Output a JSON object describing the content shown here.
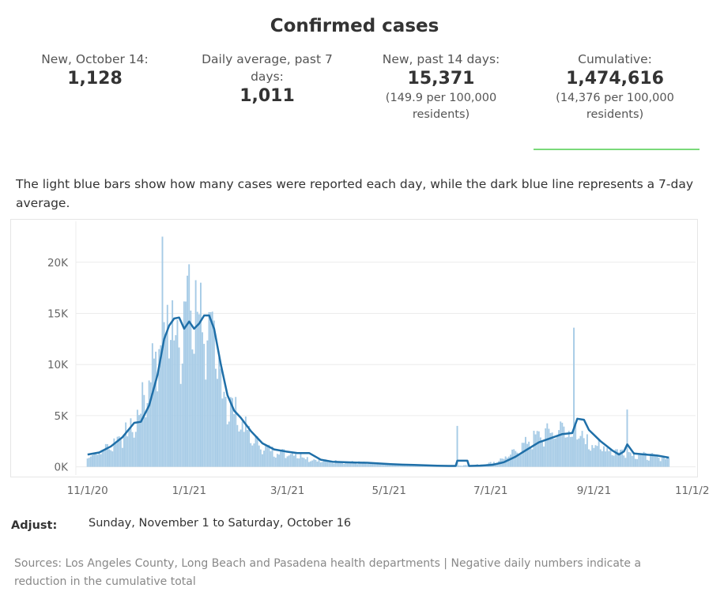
{
  "title": "Confirmed cases",
  "stats": [
    {
      "label": "New, October 14:",
      "value": "1,128",
      "sub": ""
    },
    {
      "label": "Daily average, past 7 days:",
      "value": "1,011",
      "sub": ""
    },
    {
      "label": "New, past 14 days:",
      "value": "15,371",
      "sub": "(149.9 per 100,000 residents)"
    },
    {
      "label": "Cumulative:",
      "value": "1,474,616",
      "sub": "(14,376 per 100,000 residents)"
    }
  ],
  "description": "The light blue bars show how many cases were reported each day, while the dark blue line represents a 7-day average.",
  "adjust": {
    "label": "Adjust:",
    "value": "Sunday, November 1 to Saturday, October 16"
  },
  "sources": "Sources: Los Angeles County, Long Beach and Pasadena health departments | Negative daily numbers indicate a reduction in the cumulative total",
  "colors": {
    "bars": "#a6cbe6",
    "line": "#1f6fa8",
    "grid": "#ececec",
    "accent_rule": "#7ad97a"
  },
  "chart_data": {
    "type": "bar",
    "title": "",
    "xlabel": "",
    "ylabel": "",
    "x_start": "11/1/20",
    "x_end": "10/16/21",
    "xlim": [
      "10/25/20",
      "11/1/21"
    ],
    "ylim": [
      -800,
      24000
    ],
    "y_ticks": [
      0,
      5000,
      10000,
      15000,
      20000
    ],
    "y_tick_labels": [
      "0K",
      "5K",
      "10K",
      "15K",
      "20K"
    ],
    "x_ticks": [
      "11/1/20",
      "1/1/21",
      "3/1/21",
      "5/1/21",
      "7/1/21",
      "9/1/21",
      "11/1/21"
    ],
    "grid": true,
    "series": [
      {
        "name": "Daily cases",
        "style": "bar",
        "points": [
          [
            "11/1/20",
            1100
          ],
          [
            "11/8/20",
            1500
          ],
          [
            "11/15/20",
            2200
          ],
          [
            "11/22/20",
            3200
          ],
          [
            "11/29/20",
            4000
          ],
          [
            "12/6/20",
            7500
          ],
          [
            "12/13/20",
            12500
          ],
          [
            "12/20/20",
            15000
          ],
          [
            "12/27/20",
            14000
          ],
          [
            "1/3/21",
            15500
          ],
          [
            "1/10/21",
            14500
          ],
          [
            "1/17/21",
            11000
          ],
          [
            "1/24/21",
            6500
          ],
          [
            "1/31/21",
            5000
          ],
          [
            "2/7/21",
            3000
          ],
          [
            "2/14/21",
            2000
          ],
          [
            "2/21/21",
            1600
          ],
          [
            "2/28/21",
            1400
          ],
          [
            "3/7/21",
            1300
          ],
          [
            "3/14/21",
            800
          ],
          [
            "3/21/21",
            600
          ],
          [
            "3/28/21",
            550
          ],
          [
            "4/4/21",
            500
          ],
          [
            "4/11/21",
            450
          ],
          [
            "4/18/21",
            400
          ],
          [
            "4/25/21",
            320
          ],
          [
            "5/2/21",
            250
          ],
          [
            "5/9/21",
            200
          ],
          [
            "5/16/21",
            180
          ],
          [
            "5/23/21",
            150
          ],
          [
            "5/30/21",
            120
          ],
          [
            "6/6/21",
            120
          ],
          [
            "6/13/21",
            150
          ],
          [
            "6/20/21",
            180
          ],
          [
            "6/27/21",
            250
          ],
          [
            "7/4/21",
            500
          ],
          [
            "7/11/21",
            1000
          ],
          [
            "7/18/21",
            1800
          ],
          [
            "7/25/21",
            2700
          ],
          [
            "8/1/21",
            3200
          ],
          [
            "8/8/21",
            3600
          ],
          [
            "8/15/21",
            3800
          ],
          [
            "8/22/21",
            3200
          ],
          [
            "8/29/21",
            2500
          ],
          [
            "9/5/21",
            2000
          ],
          [
            "9/12/21",
            1700
          ],
          [
            "9/19/21",
            1500
          ],
          [
            "9/26/21",
            1300
          ],
          [
            "10/3/21",
            1100
          ],
          [
            "10/10/21",
            1000
          ],
          [
            "10/16/21",
            900
          ]
        ],
        "spikes": [
          [
            "12/16/20",
            22500
          ],
          [
            "1/1/21",
            19800
          ],
          [
            "1/8/21",
            18000
          ],
          [
            "6/11/21",
            4000
          ],
          [
            "8/20/21",
            13600
          ],
          [
            "9/21/21",
            5600
          ]
        ]
      },
      {
        "name": "7-day average",
        "style": "line",
        "points": [
          [
            "11/1/20",
            1200
          ],
          [
            "11/8/20",
            1400
          ],
          [
            "11/15/20",
            2000
          ],
          [
            "11/22/20",
            2900
          ],
          [
            "11/29/20",
            4300
          ],
          [
            "12/3/20",
            4400
          ],
          [
            "12/8/20",
            6000
          ],
          [
            "12/13/20",
            9000
          ],
          [
            "12/17/20",
            12500
          ],
          [
            "12/20/20",
            13800
          ],
          [
            "12/23/20",
            14500
          ],
          [
            "12/26/20",
            14600
          ],
          [
            "12/29/20",
            13500
          ],
          [
            "1/1/21",
            14200
          ],
          [
            "1/4/21",
            13500
          ],
          [
            "1/7/21",
            14000
          ],
          [
            "1/10/21",
            14800
          ],
          [
            "1/13/21",
            14800
          ],
          [
            "1/16/21",
            13500
          ],
          [
            "1/20/21",
            10000
          ],
          [
            "1/24/21",
            7000
          ],
          [
            "1/28/21",
            5500
          ],
          [
            "2/1/21",
            4800
          ],
          [
            "2/7/21",
            3500
          ],
          [
            "2/14/21",
            2300
          ],
          [
            "2/21/21",
            1700
          ],
          [
            "2/28/21",
            1500
          ],
          [
            "3/7/21",
            1350
          ],
          [
            "3/14/21",
            1350
          ],
          [
            "3/21/21",
            700
          ],
          [
            "3/28/21",
            500
          ],
          [
            "4/4/21",
            450
          ],
          [
            "4/11/21",
            420
          ],
          [
            "4/18/21",
            400
          ],
          [
            "4/25/21",
            330
          ],
          [
            "5/2/21",
            260
          ],
          [
            "5/9/21",
            210
          ],
          [
            "5/16/21",
            180
          ],
          [
            "5/23/21",
            150
          ],
          [
            "5/30/21",
            110
          ],
          [
            "6/6/21",
            90
          ],
          [
            "6/10/21",
            90
          ],
          [
            "6/11/21",
            600
          ],
          [
            "6/17/21",
            600
          ],
          [
            "6/18/21",
            90
          ],
          [
            "6/25/21",
            120
          ],
          [
            "7/2/21",
            200
          ],
          [
            "7/9/21",
            450
          ],
          [
            "7/16/21",
            1000
          ],
          [
            "7/23/21",
            1700
          ],
          [
            "7/30/21",
            2400
          ],
          [
            "8/6/21",
            2800
          ],
          [
            "8/13/21",
            3200
          ],
          [
            "8/19/21",
            3300
          ],
          [
            "8/22/21",
            4700
          ],
          [
            "8/26/21",
            4600
          ],
          [
            "8/29/21",
            3600
          ],
          [
            "9/5/21",
            2500
          ],
          [
            "9/12/21",
            1600
          ],
          [
            "9/16/21",
            1200
          ],
          [
            "9/19/21",
            1500
          ],
          [
            "9/21/21",
            2200
          ],
          [
            "9/25/21",
            1300
          ],
          [
            "10/2/21",
            1200
          ],
          [
            "10/9/21",
            1100
          ],
          [
            "10/16/21",
            900
          ]
        ]
      }
    ]
  }
}
